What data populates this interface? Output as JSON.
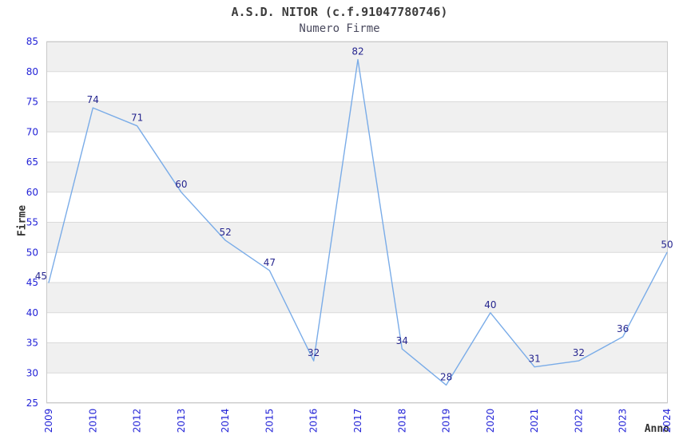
{
  "chart_data": {
    "type": "line",
    "title": "A.S.D. NITOR (c.f.91047780746)",
    "subtitle": "Numero Firme",
    "xlabel": "Anno",
    "ylabel": "Firme",
    "x": [
      "2009",
      "2010",
      "2012",
      "2013",
      "2014",
      "2015",
      "2016",
      "2017",
      "2018",
      "2019",
      "2020",
      "2021",
      "2022",
      "2023",
      "2024"
    ],
    "values": [
      45,
      74,
      71,
      60,
      52,
      47,
      32,
      82,
      34,
      28,
      40,
      31,
      32,
      36,
      50
    ],
    "point_labels": true,
    "markers": "none",
    "legend": "none",
    "ylim": [
      25,
      85
    ],
    "ytick_step": 5,
    "yticks": [
      25,
      30,
      35,
      40,
      45,
      50,
      55,
      60,
      65,
      70,
      75,
      80,
      85
    ],
    "grid": "horizontal",
    "banded_rows": true,
    "x_tick_rotation": -90,
    "colors": {
      "line": "#7AACE8",
      "axis_tick_labels": "#2323D7",
      "point_labels": "#26268F",
      "title": "#3C3C3C",
      "subtitle": "#4A4A5E",
      "axis_titles": "#333333",
      "row_band": "#F0F0F0",
      "gridline": "#DADADA",
      "plot_border": "#C9C9C9",
      "background": "#FFFFFF"
    }
  }
}
